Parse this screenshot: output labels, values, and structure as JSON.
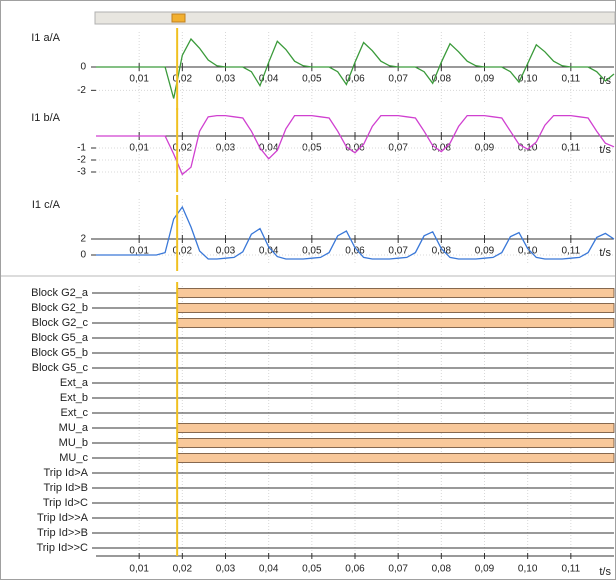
{
  "chart_data": [
    {
      "type": "line",
      "ylabel": "I1 a/A",
      "xlabel": "t/s",
      "color": "#3a9a3a",
      "grid": true,
      "x_axis_at": 0,
      "cursor": 0.0188,
      "xlim": [
        0,
        0.12
      ],
      "ylim": [
        -3,
        3
      ],
      "yticks": [
        0,
        -2
      ],
      "xticks": [
        {
          "value": 0.01,
          "label": "0,01"
        },
        {
          "value": 0.02,
          "label": "0,02"
        },
        {
          "value": 0.03,
          "label": "0,03"
        },
        {
          "value": 0.04,
          "label": "0,04"
        },
        {
          "value": 0.05,
          "label": "0,05"
        },
        {
          "value": 0.06,
          "label": "0,06"
        },
        {
          "value": 0.07,
          "label": "0,07"
        },
        {
          "value": 0.08,
          "label": "0,08"
        },
        {
          "value": 0.09,
          "label": "0,09"
        },
        {
          "value": 0.1,
          "label": "0,10"
        },
        {
          "value": 0.11,
          "label": "0,11"
        }
      ],
      "x": [
        0,
        0.002,
        0.004,
        0.006,
        0.008,
        0.01,
        0.012,
        0.014,
        0.016,
        0.018,
        0.02,
        0.022,
        0.024,
        0.026,
        0.028,
        0.03,
        0.032,
        0.034,
        0.036,
        0.038,
        0.04,
        0.042,
        0.044,
        0.046,
        0.048,
        0.05,
        0.052,
        0.054,
        0.056,
        0.058,
        0.06,
        0.062,
        0.064,
        0.066,
        0.068,
        0.07,
        0.072,
        0.074,
        0.076,
        0.078,
        0.08,
        0.082,
        0.084,
        0.086,
        0.088,
        0.09,
        0.092,
        0.094,
        0.096,
        0.098,
        0.1,
        0.102,
        0.104,
        0.106,
        0.108,
        0.11,
        0.112,
        0.114,
        0.116,
        0.118,
        0.12
      ],
      "values": [
        0,
        0,
        0,
        0,
        0,
        0,
        0,
        0,
        0,
        -2.7,
        1.0,
        2.4,
        1.6,
        0.6,
        0.1,
        0,
        0,
        0,
        -0.4,
        -1.6,
        0.4,
        2.2,
        1.5,
        0.5,
        0.1,
        0,
        0,
        0,
        -0.4,
        -1.5,
        0.4,
        2.1,
        1.4,
        0.5,
        0.1,
        0,
        0,
        0,
        -0.4,
        -1.4,
        0.4,
        2.0,
        1.3,
        0.5,
        0.1,
        0,
        0,
        0,
        -0.4,
        -1.3,
        0.3,
        1.9,
        1.3,
        0.5,
        0.1,
        0,
        0,
        0,
        -0.4,
        -1.2,
        -0.6
      ]
    },
    {
      "type": "line",
      "ylabel": "I1 b/A",
      "xlabel": "t/s",
      "color": "#d040d0",
      "grid": true,
      "x_axis_at": 0,
      "cursor": 0.0188,
      "xlim": [
        0,
        0.12
      ],
      "ylim": [
        -4,
        2
      ],
      "yticks": [
        -1,
        -2,
        -3
      ],
      "xticks": [
        {
          "value": 0.01,
          "label": "0,01"
        },
        {
          "value": 0.02,
          "label": "0,02"
        },
        {
          "value": 0.03,
          "label": "0,03"
        },
        {
          "value": 0.04,
          "label": "0,04"
        },
        {
          "value": 0.05,
          "label": "0,05"
        },
        {
          "value": 0.06,
          "label": "0,06"
        },
        {
          "value": 0.07,
          "label": "0,07"
        },
        {
          "value": 0.08,
          "label": "0,08"
        },
        {
          "value": 0.09,
          "label": "0,09"
        },
        {
          "value": 0.1,
          "label": "0,10"
        },
        {
          "value": 0.11,
          "label": "0,11"
        }
      ],
      "x": [
        0,
        0.002,
        0.004,
        0.006,
        0.008,
        0.01,
        0.012,
        0.014,
        0.016,
        0.018,
        0.02,
        0.022,
        0.024,
        0.026,
        0.028,
        0.03,
        0.032,
        0.034,
        0.036,
        0.038,
        0.04,
        0.042,
        0.044,
        0.046,
        0.048,
        0.05,
        0.052,
        0.054,
        0.056,
        0.058,
        0.06,
        0.062,
        0.064,
        0.066,
        0.068,
        0.07,
        0.072,
        0.074,
        0.076,
        0.078,
        0.08,
        0.082,
        0.084,
        0.086,
        0.088,
        0.09,
        0.092,
        0.094,
        0.096,
        0.098,
        0.1,
        0.102,
        0.104,
        0.106,
        0.108,
        0.11,
        0.112,
        0.114,
        0.116,
        0.118,
        0.12
      ],
      "values": [
        0,
        0,
        0,
        0,
        0,
        0,
        0,
        0,
        0,
        -1.5,
        -3.2,
        -2.6,
        0.4,
        1.6,
        1.7,
        1.7,
        1.6,
        1.5,
        0.4,
        -1.0,
        -1.9,
        -1.2,
        0.6,
        1.7,
        1.7,
        1.7,
        1.6,
        1.5,
        0.4,
        -0.9,
        -1.4,
        -0.7,
        0.8,
        1.7,
        1.7,
        1.7,
        1.6,
        1.5,
        0.4,
        -0.8,
        -1.3,
        -0.6,
        0.8,
        1.7,
        1.7,
        1.7,
        1.6,
        1.5,
        0.4,
        -0.7,
        -1.1,
        -0.5,
        0.9,
        1.7,
        1.7,
        1.7,
        1.6,
        1.5,
        0.4,
        -0.6,
        -0.9
      ]
    },
    {
      "type": "line",
      "ylabel": "I1 c/A",
      "xlabel": "t/s",
      "color": "#3a78d8",
      "grid": true,
      "x_axis_at": 2,
      "cursor": 0.0188,
      "xlim": [
        0,
        0.12
      ],
      "ylim": [
        -1,
        7
      ],
      "yticks": [
        2,
        0
      ],
      "xticks": [
        {
          "value": 0.01,
          "label": "0,01"
        },
        {
          "value": 0.02,
          "label": "0,02"
        },
        {
          "value": 0.03,
          "label": "0,03"
        },
        {
          "value": 0.04,
          "label": "0,04"
        },
        {
          "value": 0.05,
          "label": "0,05"
        },
        {
          "value": 0.06,
          "label": "0,06"
        },
        {
          "value": 0.07,
          "label": "0,07"
        },
        {
          "value": 0.08,
          "label": "0,08"
        },
        {
          "value": 0.09,
          "label": "0,09"
        },
        {
          "value": 0.1,
          "label": "0,10"
        },
        {
          "value": 0.11,
          "label": "0,11"
        }
      ],
      "x": [
        0,
        0.002,
        0.004,
        0.006,
        0.008,
        0.01,
        0.012,
        0.014,
        0.016,
        0.018,
        0.02,
        0.022,
        0.024,
        0.026,
        0.028,
        0.03,
        0.032,
        0.034,
        0.036,
        0.038,
        0.04,
        0.042,
        0.044,
        0.046,
        0.048,
        0.05,
        0.052,
        0.054,
        0.056,
        0.058,
        0.06,
        0.062,
        0.064,
        0.066,
        0.068,
        0.07,
        0.072,
        0.074,
        0.076,
        0.078,
        0.08,
        0.082,
        0.084,
        0.086,
        0.088,
        0.09,
        0.092,
        0.094,
        0.096,
        0.098,
        0.1,
        0.102,
        0.104,
        0.106,
        0.108,
        0.11,
        0.112,
        0.114,
        0.116,
        0.118,
        0.12
      ],
      "values": [
        0,
        0,
        0,
        0,
        0,
        0,
        0,
        0,
        0.3,
        4.5,
        6.0,
        3.5,
        0.5,
        -0.5,
        -0.5,
        -0.4,
        -0.3,
        0.4,
        2.6,
        3.3,
        1.0,
        -0.2,
        -0.5,
        -0.5,
        -0.5,
        -0.4,
        -0.3,
        0.3,
        2.4,
        3.0,
        0.9,
        -0.3,
        -0.5,
        -0.5,
        -0.5,
        -0.4,
        -0.3,
        0.3,
        2.4,
        2.9,
        0.8,
        -0.3,
        -0.5,
        -0.5,
        -0.5,
        -0.4,
        -0.3,
        0.3,
        2.3,
        2.8,
        0.8,
        -0.3,
        -0.5,
        -0.5,
        -0.5,
        -0.4,
        -0.3,
        0.3,
        2.2,
        2.7,
        2.0
      ]
    },
    {
      "type": "binary",
      "xlabel": "t/s",
      "color": "#f8c89a",
      "grid": true,
      "cursor": 0.0188,
      "xlim": [
        0,
        0.12
      ],
      "xticks": [
        {
          "value": 0.01,
          "label": "0,01"
        },
        {
          "value": 0.02,
          "label": "0,02"
        },
        {
          "value": 0.03,
          "label": "0,03"
        },
        {
          "value": 0.04,
          "label": "0,04"
        },
        {
          "value": 0.05,
          "label": "0,05"
        },
        {
          "value": 0.06,
          "label": "0,06"
        },
        {
          "value": 0.07,
          "label": "0,07"
        },
        {
          "value": 0.08,
          "label": "0,08"
        },
        {
          "value": 0.09,
          "label": "0,09"
        },
        {
          "value": 0.1,
          "label": "0,10"
        },
        {
          "value": 0.11,
          "label": "0,11"
        }
      ],
      "series": [
        {
          "name": "Block G2_a",
          "start": 0.0188
        },
        {
          "name": "Block G2_b",
          "start": 0.0188
        },
        {
          "name": "Block G2_c",
          "start": 0.0188
        },
        {
          "name": "Block G5_a",
          "start": null
        },
        {
          "name": "Block G5_b",
          "start": null
        },
        {
          "name": "Block G5_c",
          "start": null
        },
        {
          "name": "Ext_a",
          "start": null
        },
        {
          "name": "Ext_b",
          "start": null
        },
        {
          "name": "Ext_c",
          "start": null
        },
        {
          "name": "MU_a",
          "start": 0.0188
        },
        {
          "name": "MU_b",
          "start": 0.0188
        },
        {
          "name": "MU_c",
          "start": 0.0188
        },
        {
          "name": "Trip Id>A",
          "start": null
        },
        {
          "name": "Trip Id>B",
          "start": null
        },
        {
          "name": "Trip Id>C",
          "start": null
        },
        {
          "name": "Trip Id>>A",
          "start": null
        },
        {
          "name": "Trip Id>>B",
          "start": null
        },
        {
          "name": "Trip Id>>C",
          "start": null
        }
      ]
    }
  ]
}
